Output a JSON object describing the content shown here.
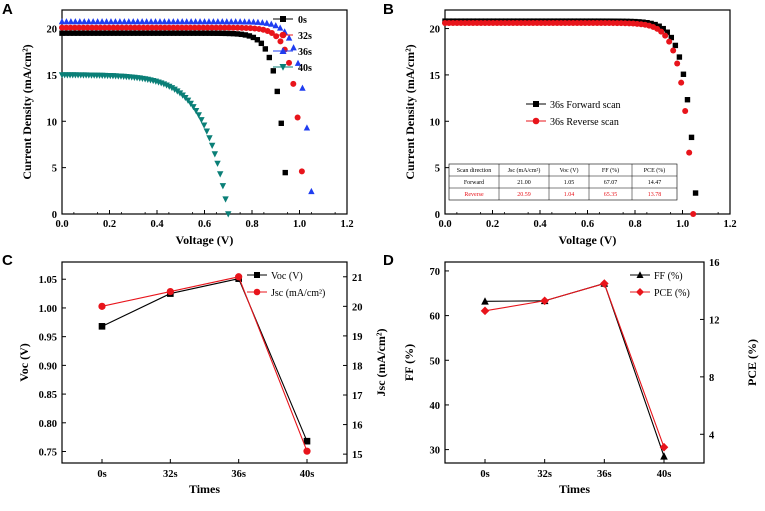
{
  "panels": {
    "A": {
      "letter": "A"
    },
    "B": {
      "letter": "B"
    },
    "C": {
      "letter": "C"
    },
    "D": {
      "letter": "D"
    }
  },
  "colors": {
    "black": "#000000",
    "red": "#e8141b",
    "blue": "#1f3df0",
    "teal": "#0a7f77"
  },
  "chart_data": [
    {
      "id": "A",
      "type": "line",
      "title": "",
      "xlabel": "Voltage (V)",
      "ylabel": "Current Density (mA/cm²)",
      "xlim": [
        0.0,
        1.2
      ],
      "ylim": [
        0,
        22
      ],
      "xticks": [
        "0.0",
        "0.2",
        "0.4",
        "0.6",
        "0.8",
        "1.0",
        "1.2"
      ],
      "yticks": [
        "0",
        "5",
        "10",
        "15",
        "20"
      ],
      "legend_position": "top-right",
      "series": [
        {
          "name": "0s",
          "color": "#000000",
          "marker": "square",
          "jsc": 19.5,
          "voc": 0.95,
          "n": 2.6,
          "vmax": 0.94
        },
        {
          "name": "32s",
          "color": "#e8141b",
          "marker": "circle",
          "jsc": 20.1,
          "voc": 1.02,
          "n": 2.6,
          "vmax": 1.01
        },
        {
          "name": "36s",
          "color": "#1f3df0",
          "marker": "triangle-up",
          "jsc": 20.75,
          "voc": 1.055,
          "n": 2.5,
          "vmax": 1.05
        },
        {
          "name": "40s",
          "color": "#0a7f77",
          "marker": "triangle-down",
          "jsc": 15.0,
          "voc": 0.7,
          "n": 1.0,
          "vmax": 0.7
        }
      ]
    },
    {
      "id": "B",
      "type": "line",
      "title": "",
      "xlabel": "Voltage (V)",
      "ylabel": "Current Density (mA/cm²)",
      "xlim": [
        0.0,
        1.2
      ],
      "ylim": [
        0,
        22
      ],
      "xticks": [
        "0.0",
        "0.2",
        "0.4",
        "0.6",
        "0.8",
        "1.0",
        "1.2"
      ],
      "yticks": [
        "0",
        "5",
        "10",
        "15",
        "20"
      ],
      "legend_position": "center-left",
      "series": [
        {
          "name": "36s Forward scan",
          "color": "#000000",
          "marker": "square",
          "jsc": 20.8,
          "voc": 1.06,
          "n": 2.3,
          "vmax": 1.055
        },
        {
          "name": "36s Reverse scan",
          "color": "#e8141b",
          "marker": "circle",
          "jsc": 20.6,
          "voc": 1.045,
          "n": 2.3,
          "vmax": 1.045
        }
      ],
      "table": {
        "headers": [
          "Scan direction",
          "Jsc (mA/cm²)",
          "Voc (V)",
          "FF (%)",
          "PCE (%)"
        ],
        "rows": [
          [
            "Forward",
            "21.00",
            "1.05",
            "67.07",
            "14.47"
          ],
          [
            "Reverse",
            "20.59",
            "1.04",
            "65.35",
            "13.78"
          ]
        ]
      }
    },
    {
      "id": "C",
      "type": "line",
      "title": "",
      "xlabel": "Times",
      "ylabel_left": "Voc (V)",
      "ylabel_right": "Jsc (mA/cm²)",
      "categories": [
        "0s",
        "32s",
        "36s",
        "40s"
      ],
      "ylim_left": [
        0.73,
        1.08
      ],
      "ylim_right": [
        14.7,
        21.5
      ],
      "yticks_left": [
        "0.75",
        "0.80",
        "0.85",
        "0.90",
        "0.95",
        "1.00",
        "1.05"
      ],
      "yticks_right": [
        "15",
        "16",
        "17",
        "18",
        "19",
        "20",
        "21"
      ],
      "legend_position": "top-right",
      "series": [
        {
          "name": "Voc (V)",
          "axis": "left",
          "color": "#000000",
          "marker": "square",
          "values": [
            0.968,
            1.025,
            1.051,
            0.768
          ]
        },
        {
          "name": "Jsc (mA/cm²)",
          "axis": "right",
          "color": "#e8141b",
          "marker": "circle",
          "values": [
            20.0,
            20.5,
            21.0,
            15.1
          ]
        }
      ]
    },
    {
      "id": "D",
      "type": "line",
      "title": "",
      "xlabel": "Times",
      "ylabel_left": "FF (%)",
      "ylabel_right": "PCE (%)",
      "categories": [
        "0s",
        "32s",
        "36s",
        "40s"
      ],
      "ylim_left": [
        27,
        72
      ],
      "ylim_right": [
        2,
        16
      ],
      "yticks_left": [
        "30",
        "40",
        "50",
        "60",
        "70"
      ],
      "yticks_right": [
        "4",
        "8",
        "12",
        "16"
      ],
      "legend_position": "top-right",
      "series": [
        {
          "name": "FF (%)",
          "axis": "left",
          "color": "#000000",
          "marker": "triangle-up",
          "values": [
            63.2,
            63.3,
            67.2,
            28.5
          ]
        },
        {
          "name": "PCE (%)",
          "axis": "right",
          "color": "#e8141b",
          "marker": "diamond",
          "values": [
            12.6,
            13.3,
            14.5,
            3.1
          ]
        }
      ]
    }
  ]
}
